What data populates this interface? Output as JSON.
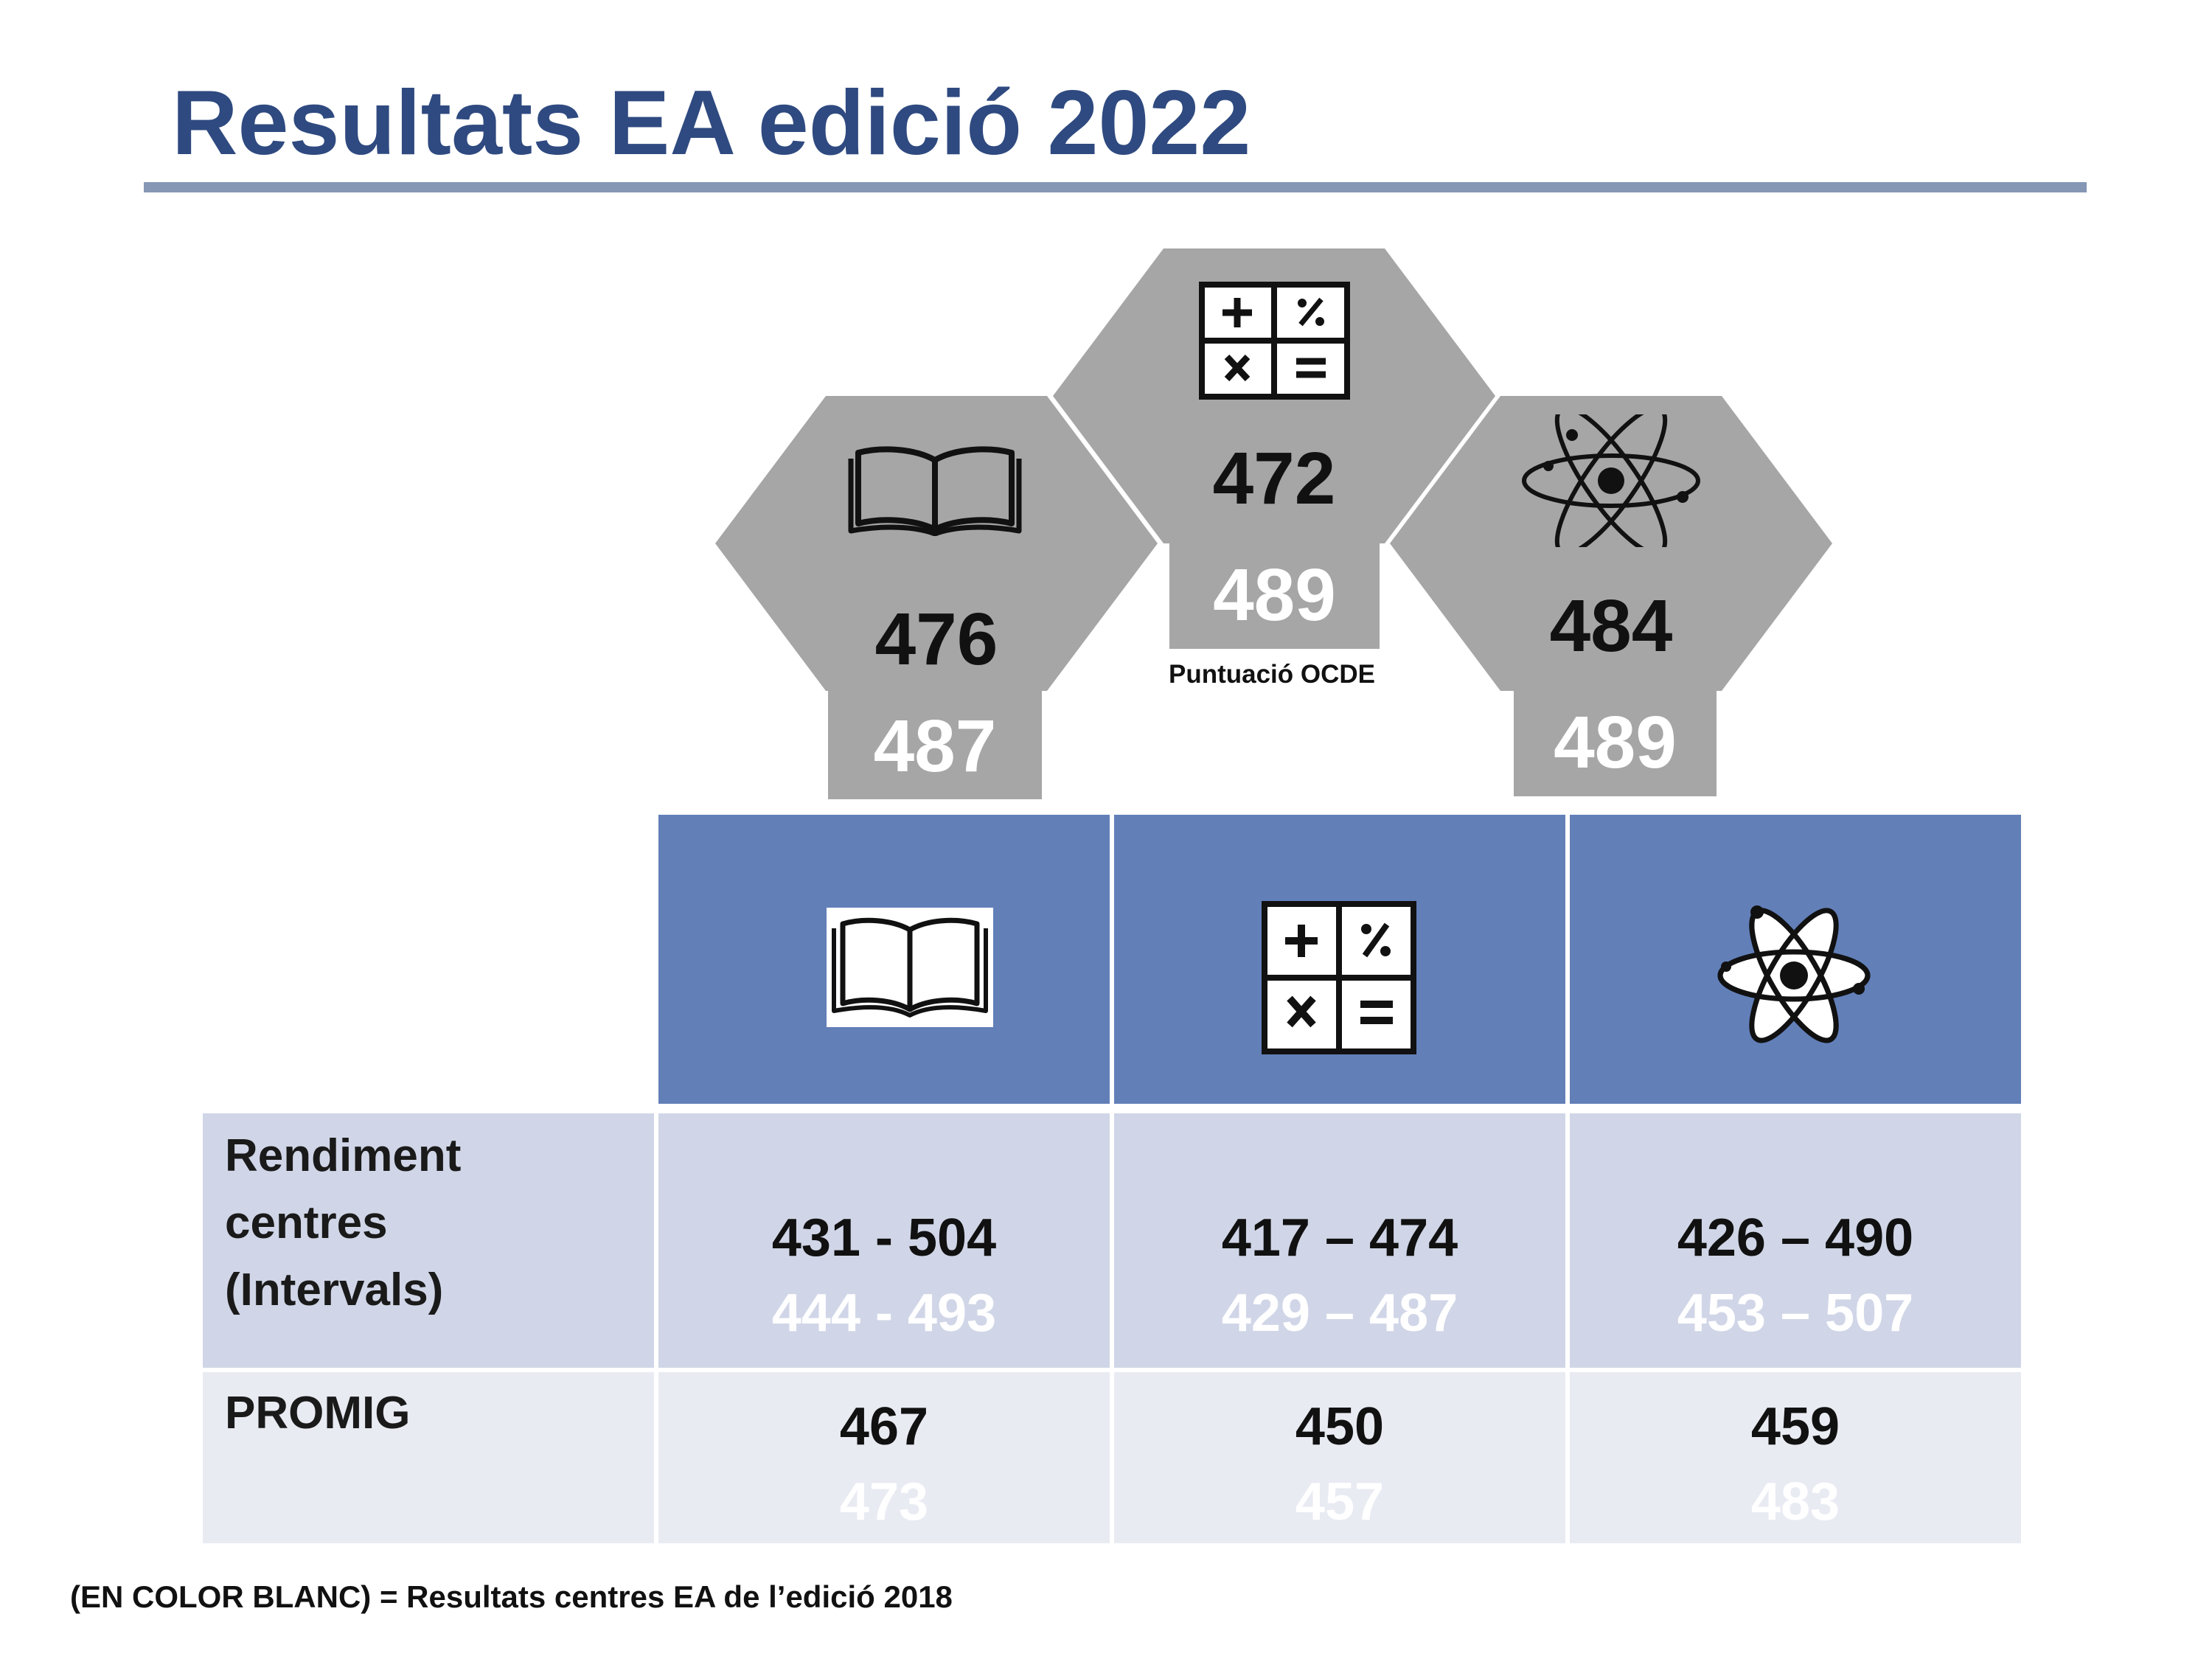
{
  "title": "Resultats EA edició 2022",
  "hexagons": {
    "reading": {
      "icon": "book-icon",
      "score_2022": "476",
      "score_ocde": "487"
    },
    "math": {
      "icon": "calculator-icon",
      "score_2022": "472",
      "score_ocde": "489",
      "ocde_label": "Puntuació OCDE"
    },
    "science": {
      "icon": "atom-icon",
      "score_2022": "484",
      "score_ocde": "489"
    }
  },
  "table": {
    "header_icons": [
      "book-icon",
      "calculator-icon",
      "atom-icon"
    ],
    "rows": [
      {
        "label": [
          "Rendiment",
          "centres",
          "(Intervals)"
        ],
        "values_2022": [
          "431 - 504",
          "417 – 474",
          "426 – 490"
        ],
        "values_2018": [
          "444 - 493",
          "429 – 487",
          "453 – 507"
        ]
      },
      {
        "label": [
          "PROMIG"
        ],
        "values_2022": [
          "467",
          "450",
          "459"
        ],
        "values_2018": [
          "473",
          "457",
          "483"
        ]
      }
    ]
  },
  "footnote": "(EN COLOR BLANC) = Resultats centres EA de l’edició 2018",
  "colors": {
    "title": "#2f4a80",
    "title_rule": "#8597b5",
    "hexagon": "#a6a6a6",
    "table_header": "#627fb8",
    "row_interval": "#d0d6e7",
    "row_average": "#e9ebf3"
  }
}
